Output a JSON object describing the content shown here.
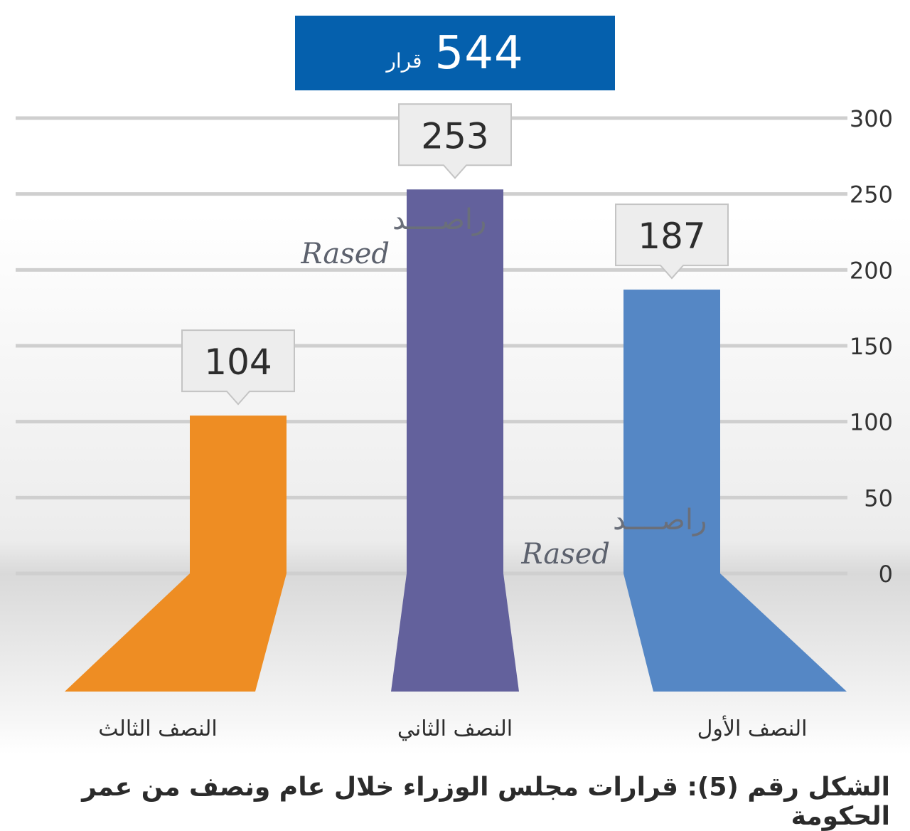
{
  "total": {
    "value": "544",
    "unit": "قرار"
  },
  "caption": "الشكل رقم (5): قرارات مجلس الوزراء خلال عام ونصف من عمر الحكومة",
  "watermark": {
    "arabic": "راصــــد",
    "english": "Rased"
  },
  "chart_data": {
    "type": "bar",
    "categories": [
      "النصف الثالث",
      "النصف الثاني",
      "النصف الأول"
    ],
    "values": [
      104,
      253,
      187
    ],
    "value_labels": [
      "104",
      "253",
      "187"
    ],
    "colors": [
      "#ee8d23",
      "#63619c",
      "#5587c5"
    ],
    "ylim": [
      0,
      300
    ],
    "yticks": [
      0,
      50,
      100,
      150,
      200,
      250,
      300
    ],
    "y_axis_side": "right",
    "grid": true
  }
}
